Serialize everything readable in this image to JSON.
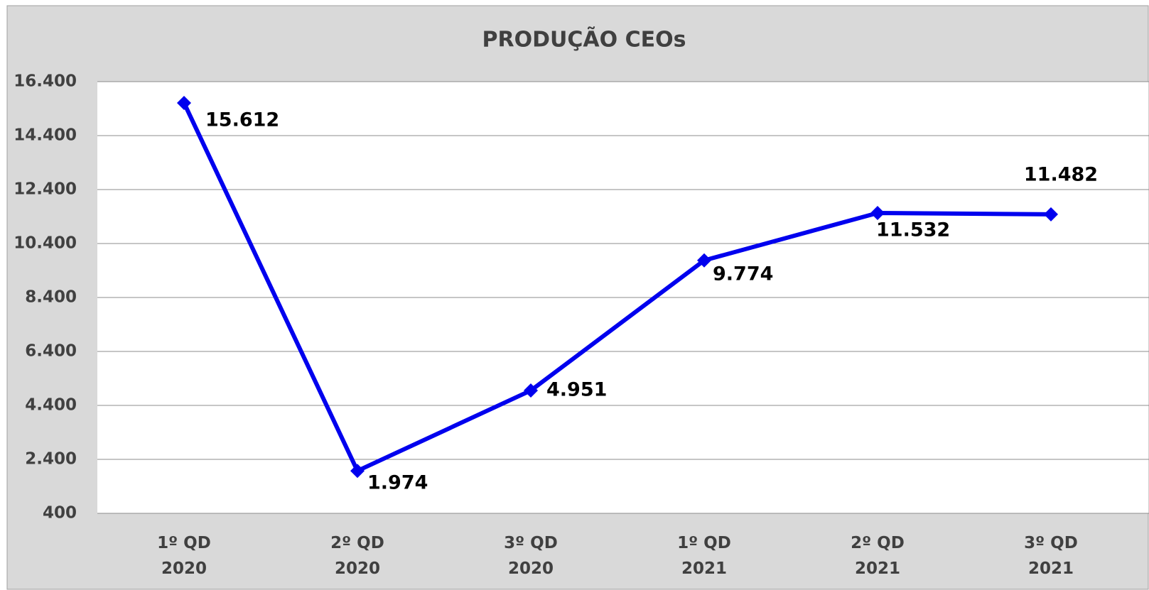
{
  "chart_data": {
    "type": "line",
    "title": "PRODUÇÃO CEOs",
    "categories": [
      "1º QD\n2020",
      "2º QD\n2020",
      "3º QD\n2020",
      "1º QD\n2021",
      "2º QD\n2021",
      "3º QD\n2021"
    ],
    "series": [
      {
        "name": "Produção CEOs",
        "color": "#0000ee",
        "values": [
          15612,
          1974,
          4951,
          9774,
          11532,
          11482
        ],
        "value_labels": [
          "15.612",
          "1.974",
          "4.951",
          "9.774",
          "11.532",
          "11.482"
        ]
      }
    ],
    "ylim": [
      400,
      16400
    ],
    "yticks": [
      400,
      {
        "value": 2400,
        "label": "2.400"
      },
      {
        "value": 4400,
        "label": "4.400"
      },
      {
        "value": 6400,
        "label": "6.400"
      },
      {
        "value": 8400,
        "label": "8.400"
      },
      {
        "value": 10400,
        "label": "10.400"
      },
      {
        "value": 12400,
        "label": "12.400"
      },
      {
        "value": 14400,
        "label": "14.400"
      },
      {
        "value": 16400,
        "label": "16.400"
      }
    ],
    "grid": true
  }
}
